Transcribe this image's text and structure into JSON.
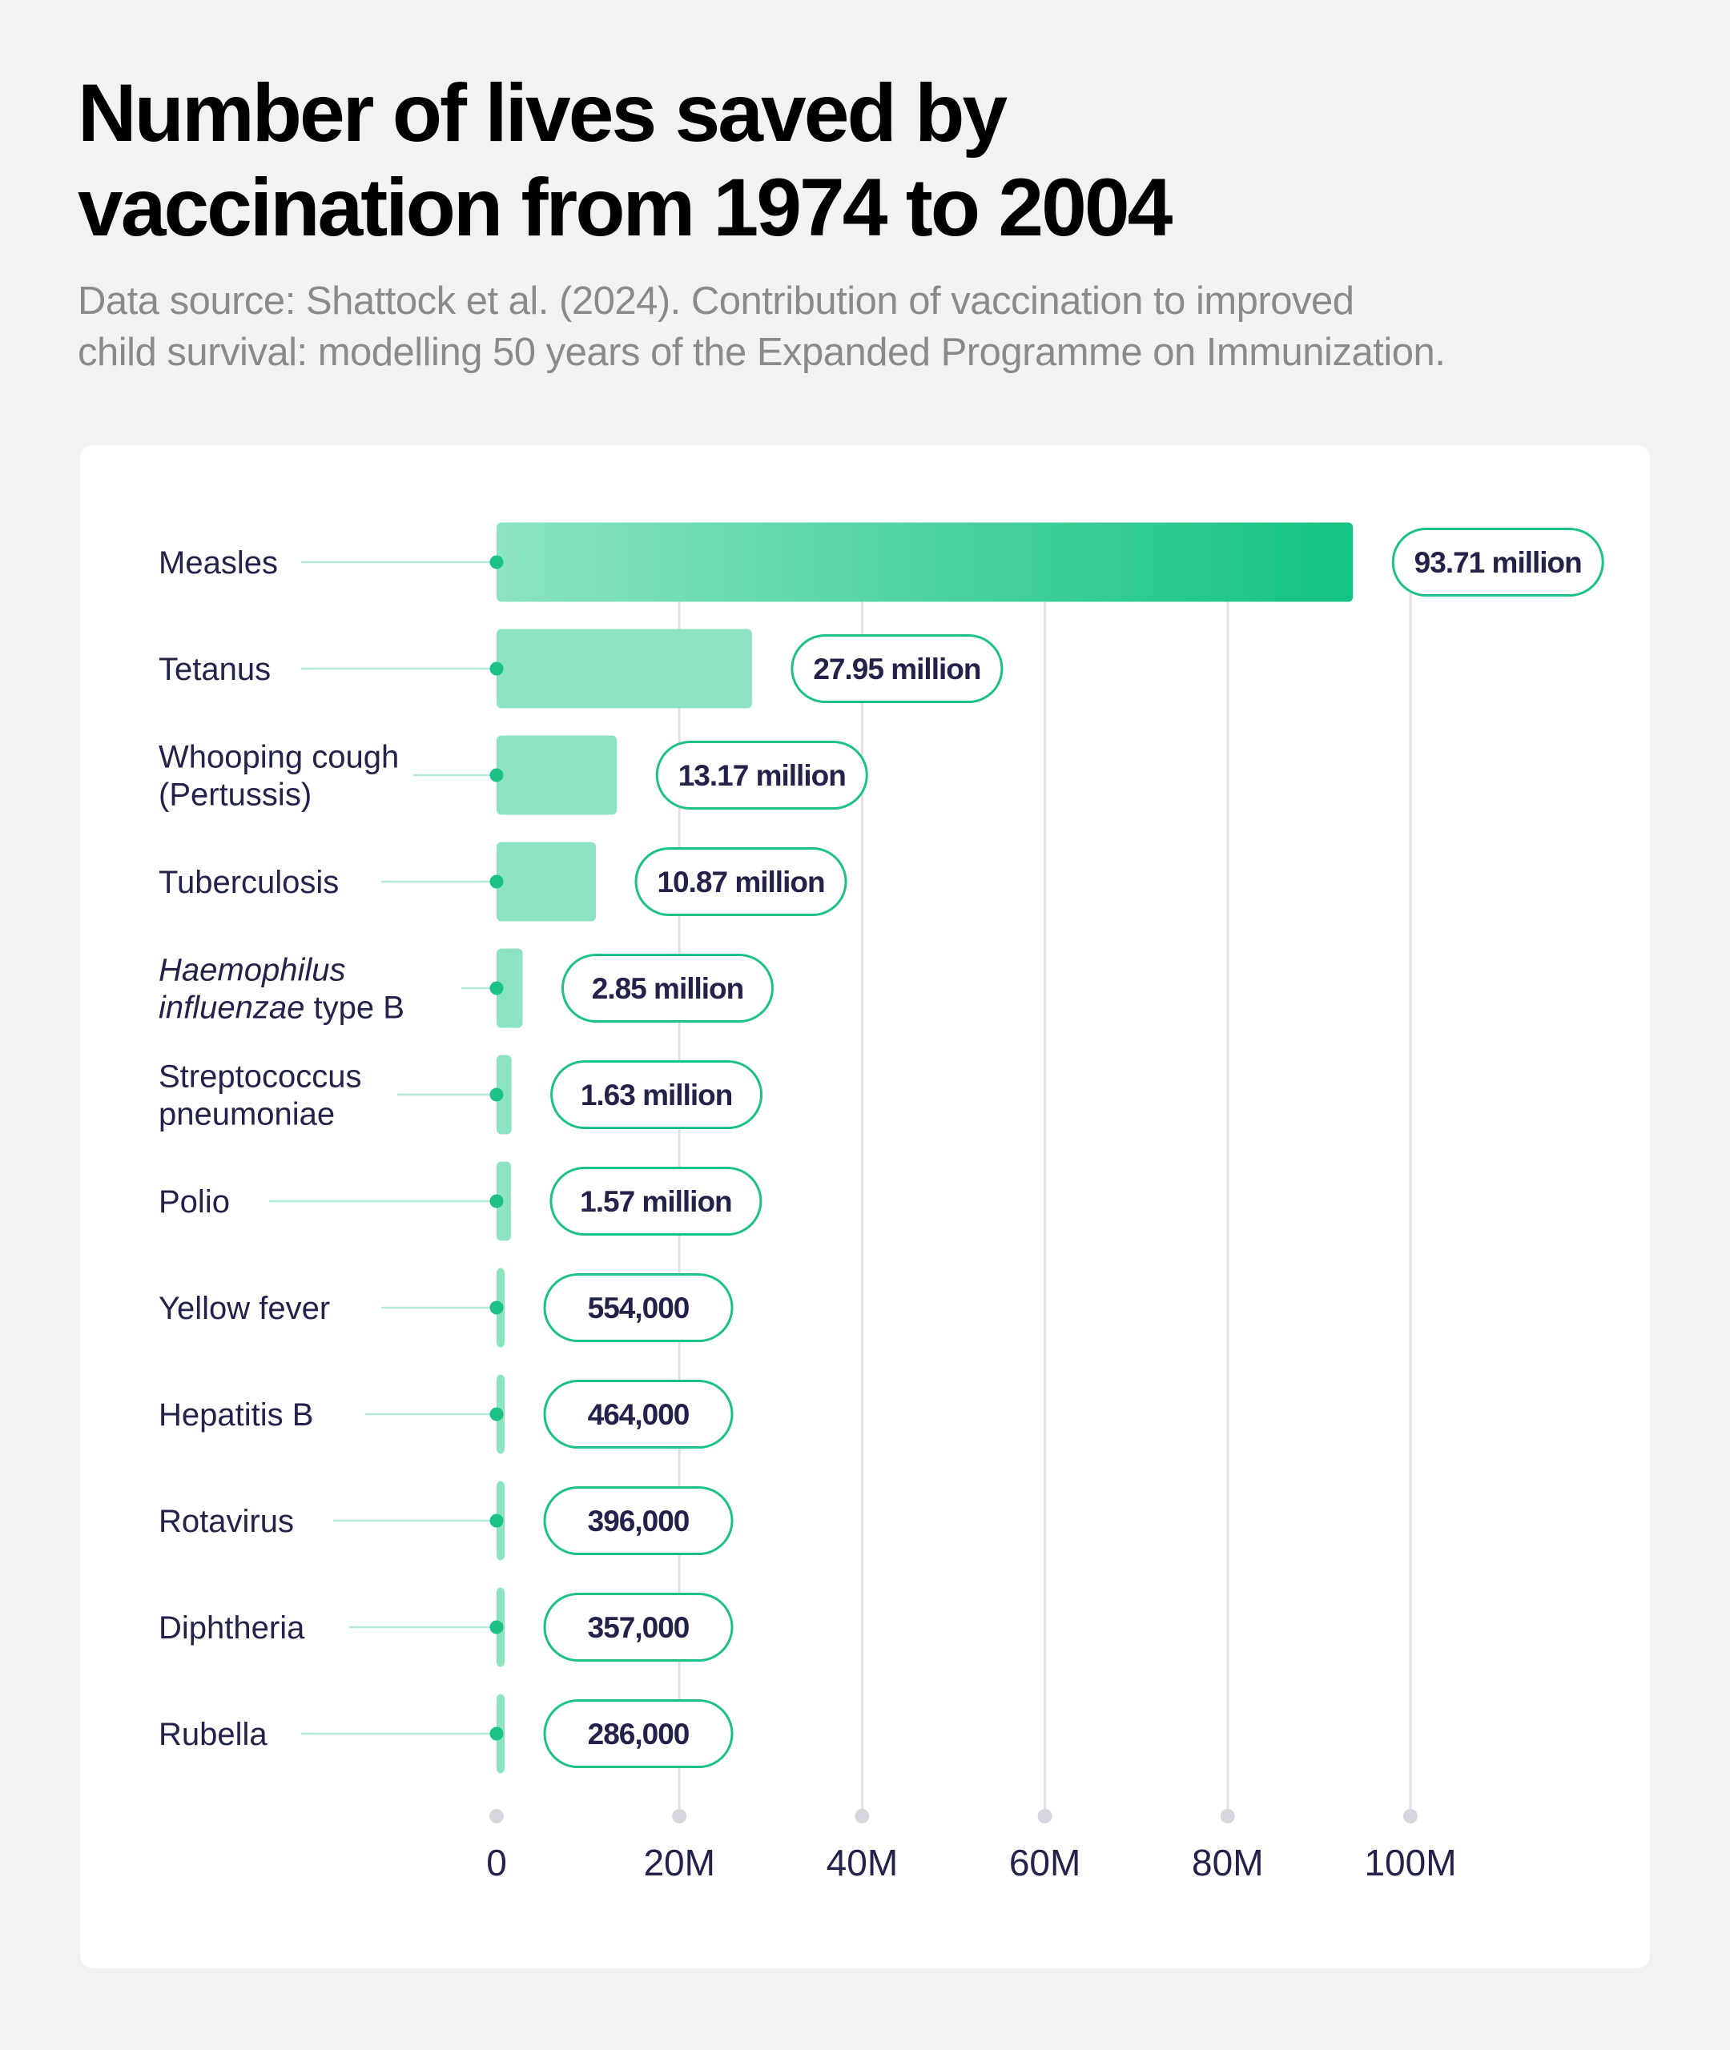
{
  "title_lines": [
    "Number of lives saved by",
    "vaccination from 1974 to 2004"
  ],
  "subtitle_lines": [
    "Data source: Shattock et al. (2024). Contribution of vaccination to improved",
    "child survival: modelling 50 years of the Expanded Programme on Immunization."
  ],
  "colors": {
    "bar_start": "#8ce3c2",
    "bar_end": "#14c483",
    "bar_light": "#8ce3c2",
    "accent": "#1cc184",
    "label_text": "#22224a",
    "grid": "#e0e0e8",
    "connector": "#b5ead6"
  },
  "chart_data": {
    "type": "bar",
    "orientation": "horizontal",
    "grid": true,
    "xlim": [
      0,
      100000000
    ],
    "x_ticks": [
      {
        "value": 0,
        "label": "0"
      },
      {
        "value": 20000000,
        "label": "20M"
      },
      {
        "value": 40000000,
        "label": "40M"
      },
      {
        "value": 60000000,
        "label": "60M"
      },
      {
        "value": 80000000,
        "label": "80M"
      },
      {
        "value": 100000000,
        "label": "100M"
      }
    ],
    "bars": [
      {
        "category": [
          {
            "text": "Measles"
          }
        ],
        "value": 93710000,
        "label": "93.71 million"
      },
      {
        "category": [
          {
            "text": "Tetanus"
          }
        ],
        "value": 27950000,
        "label": "27.95 million"
      },
      {
        "category": [
          {
            "text": "Whooping cough"
          },
          {
            "text": "(Pertussis)"
          }
        ],
        "value": 13170000,
        "label": "13.17 million"
      },
      {
        "category": [
          {
            "text": "Tuberculosis"
          }
        ],
        "value": 10870000,
        "label": "10.87 million"
      },
      {
        "category": [
          {
            "text": "Haemophilus",
            "italic": true
          },
          {
            "text": "influenzae",
            "italic": true,
            "suffix": " type B"
          }
        ],
        "value": 2850000,
        "label": "2.85 million"
      },
      {
        "category": [
          {
            "text": "Streptococcus"
          },
          {
            "text": "pneumoniae"
          }
        ],
        "value": 1630000,
        "label": "1.63 million"
      },
      {
        "category": [
          {
            "text": "Polio"
          }
        ],
        "value": 1570000,
        "label": "1.57 million"
      },
      {
        "category": [
          {
            "text": "Yellow fever"
          }
        ],
        "value": 554000,
        "label": "554,000"
      },
      {
        "category": [
          {
            "text": "Hepatitis B"
          }
        ],
        "value": 464000,
        "label": "464,000"
      },
      {
        "category": [
          {
            "text": "Rotavirus"
          }
        ],
        "value": 396000,
        "label": "396,000"
      },
      {
        "category": [
          {
            "text": "Diphtheria"
          }
        ],
        "value": 357000,
        "label": "357,000"
      },
      {
        "category": [
          {
            "text": "Rubella"
          }
        ],
        "value": 286000,
        "label": "286,000"
      }
    ]
  }
}
